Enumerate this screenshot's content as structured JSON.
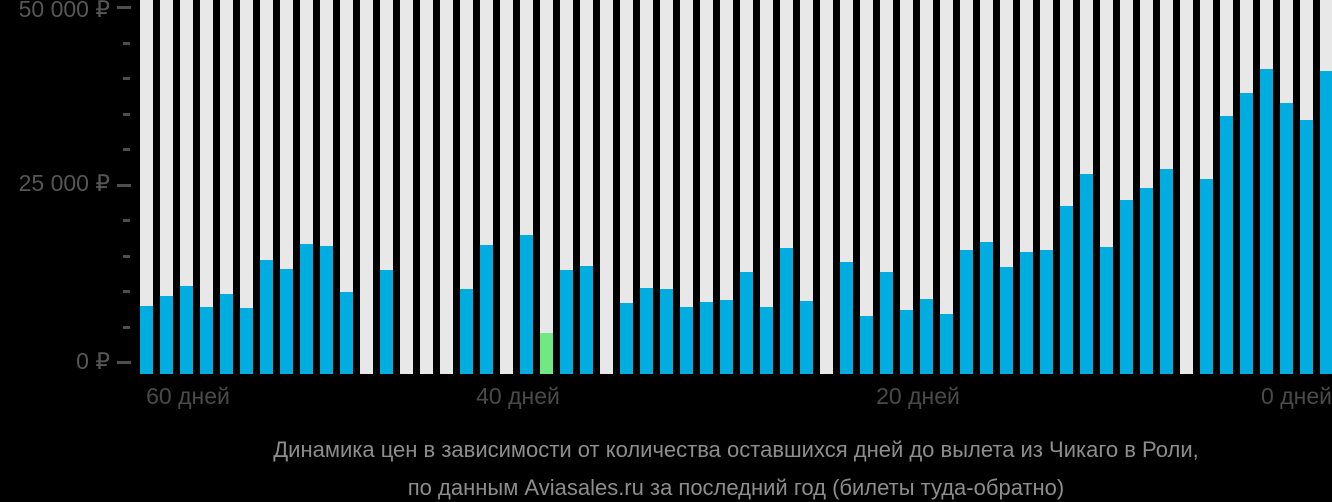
{
  "colors": {
    "background": "#000000",
    "stripe": "#E8E8E8",
    "bar": "#00ACE0",
    "lowest_bar": "#70E884",
    "axis_label": "#565656",
    "x_label": "#4A4A4A",
    "caption_text": "#8D8D8D"
  },
  "chart_data": {
    "type": "bar",
    "title": "Динамика цен в зависимости от количества оставшихся дней до вылета из Чикаго в Роли,",
    "subtitle": "по данным Aviasales.ru за последний год (билеты туда-обратно)",
    "xlabel": "",
    "ylabel": "",
    "ylim": [
      0,
      50000
    ],
    "grid": "off",
    "legend": "none",
    "currency": "₽",
    "yticks": [
      {
        "label": "50 000 ₽",
        "value": 50000
      },
      {
        "label": "25 000 ₽",
        "value": 25000
      },
      {
        "label": "0 ₽",
        "value": 0
      }
    ],
    "minor_tick_values": [
      45000,
      40000,
      35000,
      30000,
      20000,
      15000,
      10000,
      5000
    ],
    "xticks": [
      "60 дней",
      "40 дней",
      "20 дней",
      "0 дней"
    ],
    "x_axis_meaning": "days left before departure, decreasing left to right",
    "bars": [
      {
        "day": 59,
        "value": 8000
      },
      {
        "day": 58,
        "value": 9400
      },
      {
        "day": 57,
        "value": 10800
      },
      {
        "day": 56,
        "value": 7800
      },
      {
        "day": 55,
        "value": 9600
      },
      {
        "day": 54,
        "value": 7700
      },
      {
        "day": 53,
        "value": 14400
      },
      {
        "day": 52,
        "value": 13200
      },
      {
        "day": 51,
        "value": 16700
      },
      {
        "day": 50,
        "value": 16400
      },
      {
        "day": 49,
        "value": 9900
      },
      {
        "day": 48,
        "value": null
      },
      {
        "day": 47,
        "value": 13000
      },
      {
        "day": 46,
        "value": null
      },
      {
        "day": 45,
        "value": null
      },
      {
        "day": 44,
        "value": null
      },
      {
        "day": 43,
        "value": 10300
      },
      {
        "day": 42,
        "value": 16500
      },
      {
        "day": 41,
        "value": null
      },
      {
        "day": 40,
        "value": 18000
      },
      {
        "day": 39,
        "value": 4200,
        "lowest": true
      },
      {
        "day": 38,
        "value": 13000
      },
      {
        "day": 37,
        "value": 13600
      },
      {
        "day": 36,
        "value": null
      },
      {
        "day": 35,
        "value": 8400
      },
      {
        "day": 34,
        "value": 10500
      },
      {
        "day": 33,
        "value": 10300
      },
      {
        "day": 32,
        "value": 7800
      },
      {
        "day": 31,
        "value": 8500
      },
      {
        "day": 30,
        "value": 8800
      },
      {
        "day": 29,
        "value": 12700
      },
      {
        "day": 28,
        "value": 7800
      },
      {
        "day": 27,
        "value": 16100
      },
      {
        "day": 26,
        "value": 8700
      },
      {
        "day": 25,
        "value": null
      },
      {
        "day": 24,
        "value": 14200
      },
      {
        "day": 23,
        "value": 6600
      },
      {
        "day": 22,
        "value": 12700
      },
      {
        "day": 21,
        "value": 7400
      },
      {
        "day": 20,
        "value": 8900
      },
      {
        "day": 19,
        "value": 6800
      },
      {
        "day": 18,
        "value": 15800
      },
      {
        "day": 17,
        "value": 17000
      },
      {
        "day": 16,
        "value": 13400
      },
      {
        "day": 15,
        "value": 15600
      },
      {
        "day": 14,
        "value": 15800
      },
      {
        "day": 13,
        "value": 22100
      },
      {
        "day": 12,
        "value": 26500
      },
      {
        "day": 11,
        "value": 16300
      },
      {
        "day": 10,
        "value": 22900
      },
      {
        "day": 9,
        "value": 24600
      },
      {
        "day": 8,
        "value": 27300
      },
      {
        "day": 7,
        "value": null
      },
      {
        "day": 6,
        "value": 25800
      },
      {
        "day": 5,
        "value": 34700
      },
      {
        "day": 4,
        "value": 38000
      },
      {
        "day": 3,
        "value": 41400
      },
      {
        "day": 2,
        "value": 36500
      },
      {
        "day": 1,
        "value": 34100
      },
      {
        "day": 0,
        "value": 41000
      }
    ]
  }
}
